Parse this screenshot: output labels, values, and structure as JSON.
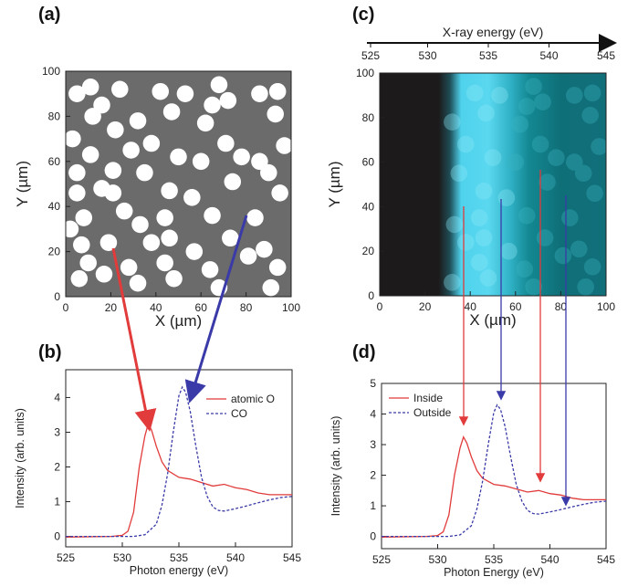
{
  "chart_data": [
    {
      "id": "a",
      "type": "scatter",
      "panel_label": "(a)",
      "xlabel": "X (µm)",
      "ylabel": "Y (µm)",
      "xlim": [
        0,
        100
      ],
      "ylim": [
        0,
        100
      ],
      "xticks": [
        "0",
        "20",
        "40",
        "60",
        "80",
        "100"
      ],
      "yticks": [
        "0",
        "20",
        "40",
        "60",
        "80",
        "100"
      ],
      "colors": {
        "background": "#6b6b6b",
        "dots": "#ffffff"
      },
      "dot_diameter_um": 7.5,
      "points": [
        [
          5,
          90
        ],
        [
          11,
          93
        ],
        [
          16,
          85
        ],
        [
          24,
          92
        ],
        [
          42,
          91
        ],
        [
          53,
          90
        ],
        [
          68,
          94
        ],
        [
          86,
          90
        ],
        [
          3,
          70
        ],
        [
          12,
          80
        ],
        [
          22,
          74
        ],
        [
          32,
          78
        ],
        [
          47,
          82
        ],
        [
          65,
          85
        ],
        [
          72,
          87
        ],
        [
          94,
          91
        ],
        [
          93,
          81
        ],
        [
          11,
          63
        ],
        [
          21,
          56
        ],
        [
          29,
          65
        ],
        [
          38,
          68
        ],
        [
          60,
          60
        ],
        [
          71,
          68
        ],
        [
          78,
          62
        ],
        [
          86,
          60
        ],
        [
          90,
          55
        ],
        [
          97,
          67
        ],
        [
          5,
          55
        ],
        [
          16,
          48
        ],
        [
          26,
          38
        ],
        [
          35,
          55
        ],
        [
          46,
          47
        ],
        [
          56,
          44
        ],
        [
          74,
          51
        ],
        [
          5,
          46
        ],
        [
          8,
          35
        ],
        [
          21,
          46
        ],
        [
          33,
          32
        ],
        [
          44,
          35
        ],
        [
          65,
          36
        ],
        [
          84,
          35
        ],
        [
          95,
          46
        ],
        [
          7,
          23
        ],
        [
          10,
          15
        ],
        [
          19,
          24
        ],
        [
          38,
          24
        ],
        [
          46,
          26
        ],
        [
          57,
          20
        ],
        [
          73,
          26
        ],
        [
          88,
          21
        ],
        [
          6,
          8
        ],
        [
          17,
          10
        ],
        [
          28,
          13
        ],
        [
          44,
          15
        ],
        [
          64,
          12
        ],
        [
          81,
          18
        ],
        [
          94,
          13
        ],
        [
          32,
          6
        ],
        [
          48,
          8
        ],
        [
          68,
          4
        ],
        [
          91,
          4
        ],
        [
          2,
          30
        ],
        [
          50,
          62
        ],
        [
          62,
          77
        ]
      ]
    },
    {
      "id": "b",
      "type": "line",
      "panel_label": "(b)",
      "xlabel": "Photon energy (eV)",
      "ylabel": "Intensity (arb. units)",
      "xlim": [
        525,
        545
      ],
      "ylim": [
        -0.3,
        4.8
      ],
      "xticks": [
        "525",
        "530",
        "535",
        "540",
        "545"
      ],
      "yticks": [
        "0",
        "1",
        "2",
        "3",
        "4"
      ],
      "legend_position": "top-right",
      "series": [
        {
          "name": "atomic O",
          "color": "#e23b3b",
          "style": "solid",
          "x": [
            525,
            529,
            530,
            530.5,
            531,
            531.5,
            532,
            532.3,
            532.6,
            533,
            533.5,
            534,
            535,
            536,
            537,
            538,
            539,
            540,
            541,
            542,
            543,
            544,
            545
          ],
          "y": [
            -0.02,
            0,
            0.03,
            0.15,
            0.7,
            2.0,
            2.9,
            3.25,
            3.05,
            2.6,
            2.15,
            1.9,
            1.7,
            1.65,
            1.55,
            1.45,
            1.5,
            1.4,
            1.35,
            1.25,
            1.2,
            1.2,
            1.2
          ]
        },
        {
          "name": "CO",
          "color": "#3a3aa8",
          "style": "dashed",
          "x": [
            525,
            531,
            532,
            533,
            533.5,
            534,
            534.5,
            535,
            535.3,
            535.6,
            536,
            536.5,
            537,
            537.5,
            538,
            538.5,
            539,
            540,
            541,
            542,
            543,
            544,
            545
          ],
          "y": [
            0,
            0,
            0.05,
            0.35,
            0.9,
            1.8,
            3.0,
            4.05,
            4.3,
            4.15,
            3.6,
            2.6,
            1.7,
            1.15,
            0.85,
            0.75,
            0.73,
            0.8,
            0.88,
            0.97,
            1.05,
            1.12,
            1.15
          ]
        }
      ]
    },
    {
      "id": "c",
      "type": "heatmap",
      "panel_label": "(c)",
      "top_axis_label": "X-ray energy (eV)",
      "top_ticks": [
        "525",
        "530",
        "535",
        "540",
        "545"
      ],
      "xlabel": "X (µm)",
      "ylabel": "Y (µm)",
      "xlim": [
        0,
        100
      ],
      "ylim": [
        0,
        100
      ],
      "xticks": [
        "0",
        "20",
        "40",
        "60",
        "80",
        "100"
      ],
      "yticks": [
        "0",
        "20",
        "40",
        "60",
        "80",
        "100"
      ],
      "colors": {
        "dark": "#1c1a1a",
        "bright": "#4fd2ec",
        "mid": "#1f9ca8",
        "deep": "#0f6f78"
      }
    },
    {
      "id": "d",
      "type": "line",
      "panel_label": "(d)",
      "xlabel": "Photon Energy (eV)",
      "ylabel": "Intensity (arb. units)",
      "xlim": [
        525,
        545
      ],
      "ylim": [
        -0.4,
        5
      ],
      "xticks": [
        "525",
        "530",
        "535",
        "540",
        "545"
      ],
      "yticks": [
        "0",
        "1",
        "2",
        "3",
        "4",
        "5"
      ],
      "legend_position": "top-left",
      "series": [
        {
          "name": "Inside",
          "color": "#e23b3b",
          "style": "solid",
          "x": [
            525,
            529,
            530,
            530.5,
            531,
            531.5,
            532,
            532.3,
            532.6,
            533,
            533.5,
            534,
            535,
            536,
            537,
            538,
            539,
            540,
            541,
            542,
            543,
            544,
            545
          ],
          "y": [
            -0.02,
            0,
            0.03,
            0.15,
            0.7,
            2.0,
            2.9,
            3.25,
            3.05,
            2.6,
            2.15,
            1.9,
            1.7,
            1.65,
            1.55,
            1.45,
            1.5,
            1.4,
            1.35,
            1.25,
            1.2,
            1.2,
            1.2
          ]
        },
        {
          "name": "Outside",
          "color": "#3a3aa8",
          "style": "dashed",
          "x": [
            525,
            531,
            532,
            533,
            533.5,
            534,
            534.5,
            535,
            535.3,
            535.6,
            536,
            536.5,
            537,
            537.5,
            538,
            538.5,
            539,
            540,
            541,
            542,
            543,
            544,
            545
          ],
          "y": [
            0,
            0,
            0.05,
            0.35,
            0.9,
            1.8,
            3.0,
            4.05,
            4.3,
            4.15,
            3.6,
            2.6,
            1.7,
            1.15,
            0.85,
            0.75,
            0.73,
            0.8,
            0.88,
            0.97,
            1.05,
            1.12,
            1.15
          ]
        }
      ]
    }
  ]
}
